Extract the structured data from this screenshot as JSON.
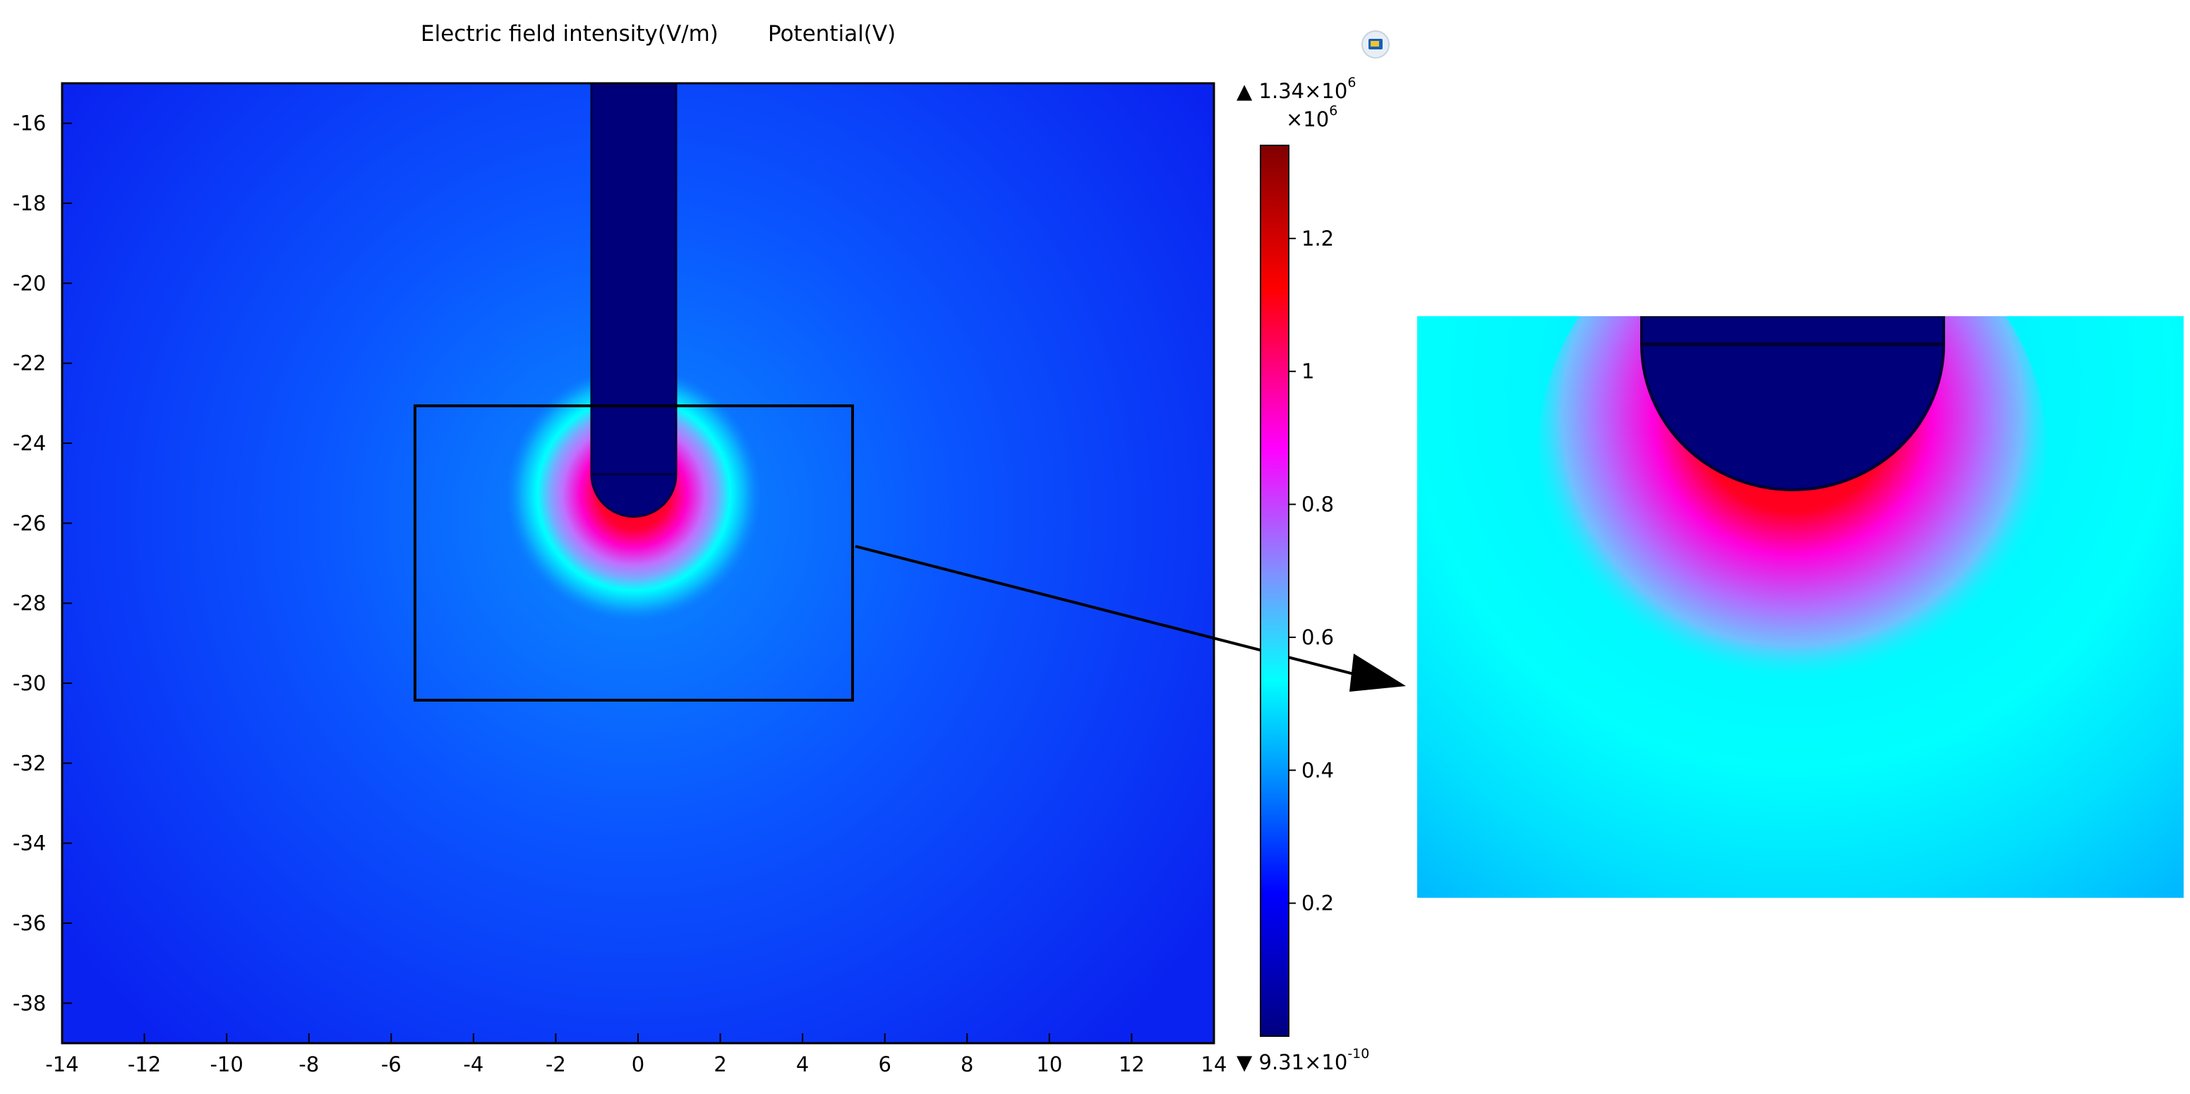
{
  "header": {
    "title_field": "Electric field intensity(V/m)",
    "title_potential": "Potential(V)"
  },
  "toolbar": {
    "icon": "scene-light-icon"
  },
  "colors": {
    "ramp": [
      "#000080",
      "#0000ff",
      "#00c8ff",
      "#00ffff",
      "#ff00ff",
      "#ff0000",
      "#800000"
    ],
    "frame": "#000000",
    "electrode": "#00007a"
  },
  "colorbar": {
    "max_label": "1.34×10",
    "max_exp": "6",
    "min_label": "9.31×10",
    "min_exp": "-10",
    "multiplier_label": "×10",
    "multiplier_exp": "6",
    "max_marker": "▲",
    "min_marker": "▼",
    "ticks": [
      "1.2",
      "1",
      "0.8",
      "0.6",
      "0.4",
      "0.2"
    ],
    "tick_values": [
      1.2,
      1.0,
      0.8,
      0.6,
      0.4,
      0.2
    ],
    "range": [
      0,
      1.34
    ]
  },
  "chart_data": {
    "type": "heatmap",
    "title": "Electric field intensity(V/m)",
    "xlim": [
      -14,
      14
    ],
    "ylim": [
      -39,
      -15
    ],
    "x_ticks": [
      "-14",
      "-12",
      "-10",
      "-8",
      "-6",
      "-4",
      "-2",
      "0",
      "2",
      "4",
      "6",
      "8",
      "10",
      "12",
      "14"
    ],
    "x_tick_values": [
      -14,
      -12,
      -10,
      -8,
      -6,
      -4,
      -2,
      0,
      2,
      4,
      6,
      8,
      10,
      12,
      14
    ],
    "y_ticks": [
      "-16",
      "-18",
      "-20",
      "-22",
      "-24",
      "-26",
      "-28",
      "-30",
      "-32",
      "-34",
      "-36",
      "-38"
    ],
    "y_tick_values": [
      -16,
      -18,
      -20,
      -22,
      -24,
      -26,
      -28,
      -30,
      -32,
      -34,
      -36,
      -38
    ],
    "electrode": {
      "x_min": -1,
      "x_max": 1,
      "tip_center_y": -25,
      "tip_radius": 1,
      "top": -15
    },
    "zoom_box": {
      "x_min": -5.4,
      "x_max": 5.4,
      "y_min": -30.6,
      "y_max": -23.3
    },
    "field_max": 1340000.0,
    "field_min": 9.31e-10,
    "grid": false
  }
}
